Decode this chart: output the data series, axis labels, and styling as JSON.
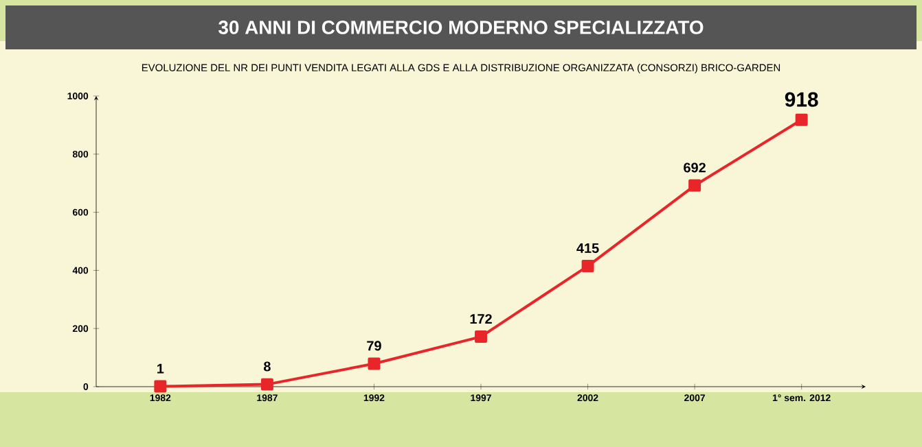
{
  "chart_data": {
    "type": "line",
    "title": "30 ANNI DI COMMERCIO MODERNO SPECIALIZZATO",
    "subtitle": "EVOLUZIONE DEL NR DEI PUNTI VENDITA LEGATI ALLA GDS E ALLA DISTRIBUZIONE ORGANIZZATA (CONSORZI) BRICO-GARDEN",
    "categories": [
      "1982",
      "1987",
      "1992",
      "1997",
      "2002",
      "2007",
      "1° sem. 2012"
    ],
    "values": [
      1,
      8,
      79,
      172,
      415,
      692,
      918
    ],
    "color": "#e8262a",
    "marker": "square",
    "line_style": "solid",
    "ylim": [
      0,
      1000
    ],
    "yticks": [
      0,
      200,
      400,
      600,
      800,
      1000
    ],
    "grid": false,
    "data_labels": true
  }
}
